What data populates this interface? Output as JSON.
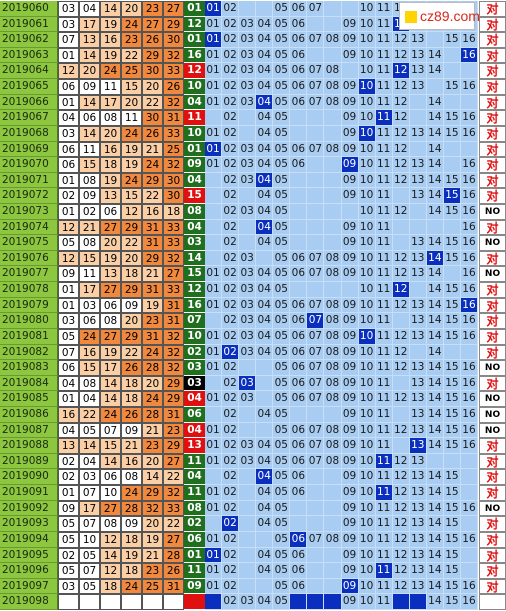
{
  "logo": "cz89.com",
  "rows": [
    {
      "issue": "2019060",
      "reds": [
        "03",
        "04",
        "14",
        "20",
        "23",
        "27"
      ],
      "blue": "01",
      "blue_bg": "#1f6f1f",
      "grid": [
        "01",
        "02",
        "05",
        "06",
        "07",
        "10",
        "11",
        "12"
      ],
      "result": "对"
    },
    {
      "issue": "2019061",
      "reds": [
        "03",
        "17",
        "19",
        "24",
        "27",
        "29"
      ],
      "blue": "12",
      "blue_bg": "#1f6f1f",
      "grid": [
        "01",
        "02",
        "03",
        "04",
        "05",
        "06",
        "09",
        "10",
        "11",
        "12"
      ],
      "result": "对"
    },
    {
      "issue": "2019062",
      "reds": [
        "07",
        "13",
        "16",
        "23",
        "26",
        "30"
      ],
      "blue": "01",
      "blue_bg": "#1f6f1f",
      "grid": [
        "01",
        "02",
        "03",
        "04",
        "05",
        "06",
        "07",
        "08",
        "09",
        "10",
        "11",
        "12",
        "13",
        "15",
        "16"
      ],
      "result": "对"
    },
    {
      "issue": "2019063",
      "reds": [
        "01",
        "14",
        "19",
        "22",
        "29",
        "32"
      ],
      "blue": "16",
      "blue_bg": "#1f6f1f",
      "grid": [
        "01",
        "02",
        "03",
        "04",
        "05",
        "06",
        "09",
        "10",
        "11",
        "12",
        "13",
        "14",
        "16"
      ],
      "result": "对"
    },
    {
      "issue": "2019064",
      "reds": [
        "12",
        "20",
        "24",
        "25",
        "30",
        "33"
      ],
      "blue": "12",
      "blue_bg": "#e01010",
      "grid": [
        "01",
        "02",
        "03",
        "04",
        "05",
        "06",
        "07",
        "08",
        "10",
        "11",
        "12",
        "13",
        "14"
      ],
      "result": "对"
    },
    {
      "issue": "2019065",
      "reds": [
        "06",
        "09",
        "11",
        "15",
        "20",
        "26"
      ],
      "blue": "10",
      "blue_bg": "#1f6f1f",
      "grid": [
        "01",
        "02",
        "03",
        "04",
        "05",
        "06",
        "07",
        "08",
        "09",
        "10",
        "11",
        "12",
        "13",
        "15",
        "16"
      ],
      "result": "对"
    },
    {
      "issue": "2019066",
      "reds": [
        "01",
        "14",
        "17",
        "20",
        "22",
        "32"
      ],
      "blue": "04",
      "blue_bg": "#1f6f1f",
      "grid": [
        "01",
        "02",
        "03",
        "04",
        "05",
        "06",
        "07",
        "08",
        "09",
        "10",
        "11",
        "12",
        "14"
      ],
      "result": "对"
    },
    {
      "issue": "2019067",
      "reds": [
        "04",
        "06",
        "08",
        "11",
        "30",
        "31"
      ],
      "blue": "11",
      "blue_bg": "#e01010",
      "grid": [
        "02",
        "04",
        "05",
        "09",
        "10",
        "11",
        "12",
        "14",
        "15",
        "16"
      ],
      "result": "对"
    },
    {
      "issue": "2019068",
      "reds": [
        "03",
        "14",
        "20",
        "24",
        "26",
        "33"
      ],
      "blue": "10",
      "blue_bg": "#1f6f1f",
      "grid": [
        "01",
        "02",
        "04",
        "05",
        "09",
        "10",
        "11",
        "12",
        "13",
        "14",
        "15",
        "16"
      ],
      "result": "对"
    },
    {
      "issue": "2019069",
      "reds": [
        "06",
        "11",
        "16",
        "19",
        "21",
        "25"
      ],
      "blue": "01",
      "blue_bg": "#1f6f1f",
      "grid": [
        "01",
        "02",
        "03",
        "04",
        "05",
        "06",
        "07",
        "08",
        "09",
        "10",
        "11",
        "12",
        "14"
      ],
      "result": "对"
    },
    {
      "issue": "2019070",
      "reds": [
        "06",
        "15",
        "18",
        "19",
        "24",
        "32"
      ],
      "blue": "09",
      "blue_bg": "#1f6f1f",
      "grid": [
        "01",
        "02",
        "03",
        "04",
        "05",
        "06",
        "09",
        "10",
        "11",
        "12",
        "13",
        "14",
        "16"
      ],
      "result": "对"
    },
    {
      "issue": "2019071",
      "reds": [
        "01",
        "08",
        "19",
        "24",
        "29",
        "30"
      ],
      "blue": "04",
      "blue_bg": "#1f6f1f",
      "grid": [
        "02",
        "03",
        "04",
        "05",
        "09",
        "10",
        "11",
        "12",
        "13",
        "14",
        "15",
        "16"
      ],
      "result": "对"
    },
    {
      "issue": "2019072",
      "reds": [
        "02",
        "09",
        "13",
        "15",
        "22",
        "30"
      ],
      "blue": "15",
      "blue_bg": "#e01010",
      "grid": [
        "02",
        "04",
        "05",
        "09",
        "10",
        "11",
        "13",
        "14",
        "15",
        "16"
      ],
      "result": "对"
    },
    {
      "issue": "2019073",
      "reds": [
        "01",
        "02",
        "06",
        "12",
        "16",
        "18"
      ],
      "blue": "08",
      "blue_bg": "#1f6f1f",
      "grid": [
        "02",
        "03",
        "04",
        "05",
        "10",
        "11",
        "12",
        "14",
        "15",
        "16"
      ],
      "result": "NO"
    },
    {
      "issue": "2019074",
      "reds": [
        "12",
        "21",
        "27",
        "29",
        "31",
        "33"
      ],
      "blue": "04",
      "blue_bg": "#1f6f1f",
      "grid": [
        "02",
        "04",
        "05",
        "09",
        "10",
        "11",
        "16"
      ],
      "result": "对"
    },
    {
      "issue": "2019075",
      "reds": [
        "05",
        "08",
        "20",
        "22",
        "31",
        "33"
      ],
      "blue": "03",
      "blue_bg": "#1f6f1f",
      "grid": [
        "02",
        "04",
        "05",
        "09",
        "10",
        "11",
        "13",
        "14",
        "15",
        "16"
      ],
      "result": "NO"
    },
    {
      "issue": "2019076",
      "reds": [
        "12",
        "15",
        "19",
        "20",
        "29",
        "32"
      ],
      "blue": "14",
      "blue_bg": "#1f6f1f",
      "grid": [
        "02",
        "03",
        "05",
        "06",
        "07",
        "08",
        "09",
        "10",
        "11",
        "12",
        "13",
        "14",
        "15",
        "16"
      ],
      "result": "对"
    },
    {
      "issue": "2019077",
      "reds": [
        "09",
        "11",
        "13",
        "18",
        "21",
        "27"
      ],
      "blue": "15",
      "blue_bg": "#1f6f1f",
      "grid": [
        "01",
        "02",
        "03",
        "04",
        "05",
        "06",
        "07",
        "08",
        "09",
        "10",
        "11",
        "12",
        "13",
        "14",
        "16"
      ],
      "result": "NO"
    },
    {
      "issue": "2019078",
      "reds": [
        "01",
        "17",
        "27",
        "29",
        "31",
        "33"
      ],
      "blue": "12",
      "blue_bg": "#1f6f1f",
      "grid": [
        "01",
        "02",
        "03",
        "04",
        "05",
        "10",
        "11",
        "12",
        "14",
        "15",
        "16"
      ],
      "result": "对"
    },
    {
      "issue": "2019079",
      "reds": [
        "01",
        "03",
        "06",
        "09",
        "19",
        "31"
      ],
      "blue": "16",
      "blue_bg": "#1f6f1f",
      "grid": [
        "01",
        "02",
        "03",
        "04",
        "05",
        "06",
        "07",
        "08",
        "09",
        "10",
        "11",
        "12",
        "13",
        "14",
        "15",
        "16"
      ],
      "result": "对"
    },
    {
      "issue": "2019080",
      "reds": [
        "03",
        "06",
        "08",
        "20",
        "23",
        "31"
      ],
      "blue": "07",
      "blue_bg": "#1f6f1f",
      "grid": [
        "02",
        "03",
        "04",
        "05",
        "06",
        "07",
        "08",
        "09",
        "10",
        "11",
        "13",
        "14",
        "15",
        "16"
      ],
      "result": "对"
    },
    {
      "issue": "2019081",
      "reds": [
        "05",
        "24",
        "27",
        "29",
        "31",
        "32"
      ],
      "blue": "10",
      "blue_bg": "#1f6f1f",
      "grid": [
        "01",
        "02",
        "03",
        "04",
        "05",
        "06",
        "07",
        "08",
        "09",
        "10",
        "11",
        "12",
        "13",
        "14",
        "15",
        "16"
      ],
      "result": "对"
    },
    {
      "issue": "2019082",
      "reds": [
        "07",
        "16",
        "19",
        "22",
        "24",
        "32"
      ],
      "blue": "02",
      "blue_bg": "#1f6f1f",
      "grid": [
        "01",
        "02",
        "03",
        "04",
        "05",
        "06",
        "07",
        "08",
        "09",
        "10",
        "11",
        "12",
        "14"
      ],
      "result": "对"
    },
    {
      "issue": "2019083",
      "reds": [
        "06",
        "15",
        "17",
        "26",
        "28",
        "32"
      ],
      "blue": "03",
      "blue_bg": "#1f6f1f",
      "grid": [
        "01",
        "02",
        "05",
        "06",
        "07",
        "08",
        "09",
        "10",
        "11",
        "12",
        "13",
        "14",
        "15",
        "16"
      ],
      "result": "NO"
    },
    {
      "issue": "2019084",
      "reds": [
        "04",
        "08",
        "14",
        "18",
        "20",
        "29"
      ],
      "blue": "03",
      "blue_bg": "#000000",
      "grid": [
        "02",
        "03",
        "05",
        "06",
        "07",
        "08",
        "09",
        "10",
        "11",
        "13",
        "14",
        "15",
        "16"
      ],
      "result": "对"
    },
    {
      "issue": "2019085",
      "reds": [
        "01",
        "04",
        "14",
        "18",
        "24",
        "29"
      ],
      "blue": "04",
      "blue_bg": "#e01010",
      "grid": [
        "01",
        "02",
        "03",
        "05",
        "06",
        "07",
        "08",
        "09",
        "10",
        "11",
        "12",
        "13",
        "14",
        "15",
        "16"
      ],
      "result": "NO"
    },
    {
      "issue": "2019086",
      "reds": [
        "16",
        "22",
        "24",
        "26",
        "28",
        "31"
      ],
      "blue": "06",
      "blue_bg": "#1f6f1f",
      "grid": [
        "02",
        "04",
        "05",
        "09",
        "10",
        "11",
        "13",
        "14",
        "15",
        "16"
      ],
      "result": "NO"
    },
    {
      "issue": "2019087",
      "reds": [
        "04",
        "05",
        "07",
        "09",
        "21",
        "23"
      ],
      "blue": "04",
      "blue_bg": "#e01010",
      "grid": [
        "01",
        "02",
        "05",
        "06",
        "07",
        "08",
        "09",
        "10",
        "11",
        "12",
        "13",
        "14",
        "15",
        "16"
      ],
      "result": "NO"
    },
    {
      "issue": "2019088",
      "reds": [
        "13",
        "14",
        "15",
        "21",
        "23",
        "29"
      ],
      "blue": "13",
      "blue_bg": "#e01010",
      "grid": [
        "01",
        "02",
        "03",
        "04",
        "05",
        "06",
        "07",
        "08",
        "09",
        "10",
        "11",
        "13",
        "14",
        "15",
        "16"
      ],
      "result": "对"
    },
    {
      "issue": "2019089",
      "reds": [
        "02",
        "04",
        "14",
        "16",
        "20",
        "27"
      ],
      "blue": "11",
      "blue_bg": "#1f6f1f",
      "grid": [
        "01",
        "02",
        "03",
        "04",
        "05",
        "06",
        "07",
        "08",
        "09",
        "10",
        "11",
        "12",
        "13"
      ],
      "result": "对"
    },
    {
      "issue": "2019090",
      "reds": [
        "02",
        "03",
        "06",
        "08",
        "14",
        "22"
      ],
      "blue": "04",
      "blue_bg": "#1f6f1f",
      "grid": [
        "02",
        "04",
        "05",
        "06",
        "09",
        "10",
        "11",
        "12",
        "13",
        "14",
        "15"
      ],
      "result": "对"
    },
    {
      "issue": "2019091",
      "reds": [
        "01",
        "07",
        "10",
        "24",
        "29",
        "32"
      ],
      "blue": "11",
      "blue_bg": "#1f6f1f",
      "grid": [
        "01",
        "02",
        "04",
        "05",
        "06",
        "09",
        "10",
        "11",
        "12",
        "13",
        "14",
        "15"
      ],
      "result": "对"
    },
    {
      "issue": "2019092",
      "reds": [
        "09",
        "17",
        "27",
        "28",
        "32",
        "33"
      ],
      "blue": "08",
      "blue_bg": "#1f6f1f",
      "grid": [
        "01",
        "02",
        "04",
        "05",
        "09",
        "10",
        "11",
        "12",
        "13",
        "14",
        "15",
        "16"
      ],
      "result": "NO"
    },
    {
      "issue": "2019093",
      "reds": [
        "05",
        "07",
        "08",
        "09",
        "20",
        "22"
      ],
      "blue": "02",
      "blue_bg": "#1f6f1f",
      "grid": [
        "02",
        "04",
        "05",
        "09",
        "10",
        "11",
        "12",
        "13",
        "14",
        "15"
      ],
      "result": "对"
    },
    {
      "issue": "2019094",
      "reds": [
        "05",
        "10",
        "12",
        "18",
        "19",
        "27"
      ],
      "blue": "06",
      "blue_bg": "#1f6f1f",
      "grid": [
        "01",
        "02",
        "05",
        "06",
        "07",
        "08",
        "09",
        "10",
        "11",
        "12",
        "13",
        "14",
        "15",
        "16"
      ],
      "result": "对"
    },
    {
      "issue": "2019095",
      "reds": [
        "02",
        "05",
        "14",
        "19",
        "21",
        "28"
      ],
      "blue": "01",
      "blue_bg": "#1f6f1f",
      "grid": [
        "01",
        "02",
        "04",
        "05",
        "06",
        "09",
        "10",
        "11",
        "12",
        "13",
        "14",
        "15"
      ],
      "result": "对"
    },
    {
      "issue": "2019096",
      "reds": [
        "05",
        "07",
        "12",
        "18",
        "23",
        "26"
      ],
      "blue": "11",
      "blue_bg": "#1f6f1f",
      "grid": [
        "01",
        "02",
        "04",
        "05",
        "06",
        "09",
        "10",
        "11",
        "12",
        "13",
        "14",
        "15"
      ],
      "result": "对"
    },
    {
      "issue": "2019097",
      "reds": [
        "03",
        "05",
        "18",
        "24",
        "25",
        "31"
      ],
      "blue": "09",
      "blue_bg": "#1f6f1f",
      "grid": [
        "01",
        "02",
        "05",
        "06",
        "09",
        "10",
        "11",
        "12",
        "13",
        "14",
        "15",
        "16"
      ],
      "result": "对"
    },
    {
      "issue": "2019098",
      "blue_bg": "#e01010",
      "grid": [
        "02",
        "03",
        "04",
        "05",
        "09",
        "10",
        "11",
        "14",
        "15",
        "16"
      ]
    }
  ]
}
